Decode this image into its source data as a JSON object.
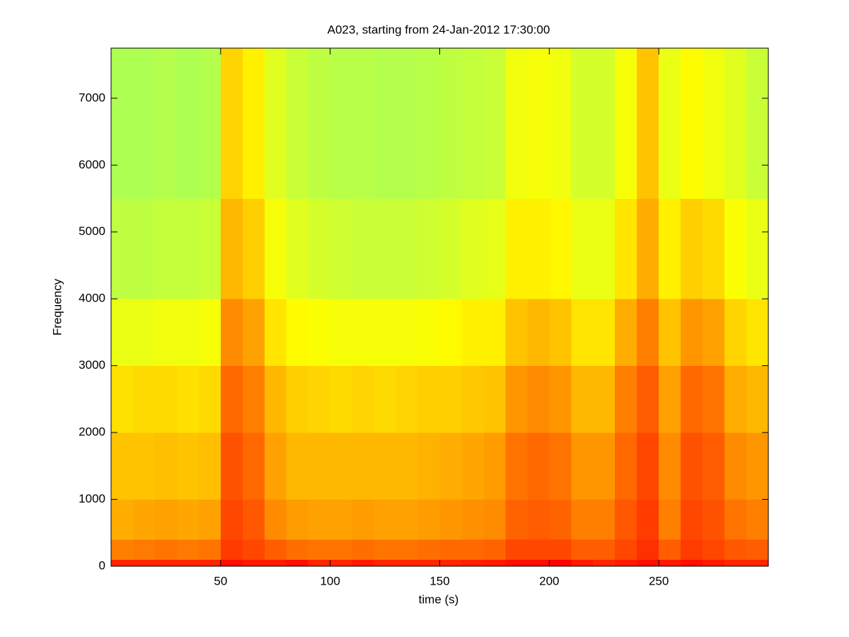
{
  "chart_data": {
    "type": "heatmap",
    "title": "A023, starting from 24-Jan-2012 17:30:00",
    "xlabel": "time (s)",
    "ylabel": "Frequency",
    "xlim": [
      0,
      300
    ],
    "ylim": [
      0,
      7750
    ],
    "xticks": [
      50,
      100,
      150,
      200,
      250
    ],
    "yticks": [
      0,
      1000,
      2000,
      3000,
      4000,
      5000,
      6000,
      7000
    ],
    "colormap": "jet",
    "clim": [
      -0.65,
      1.15
    ],
    "x_bins": [
      0,
      10,
      20,
      30,
      40,
      50,
      60,
      70,
      80,
      90,
      100,
      110,
      120,
      130,
      140,
      150,
      160,
      170,
      180,
      190,
      200,
      210,
      220,
      230,
      240,
      250,
      260,
      270,
      280,
      290,
      300
    ],
    "y_bins": [
      0,
      100,
      400,
      1000,
      2000,
      3000,
      4000,
      5500,
      7750
    ],
    "values": [
      [
        0.86,
        0.86,
        0.86,
        0.86,
        0.86,
        0.9,
        0.88,
        0.88,
        0.9,
        0.86,
        0.86,
        0.88,
        0.86,
        0.86,
        0.86,
        0.86,
        0.87,
        0.88,
        0.9,
        0.9,
        0.92,
        0.88,
        0.86,
        0.88,
        0.9,
        0.88,
        0.9,
        0.88,
        0.86,
        0.86
      ],
      [
        0.7,
        0.71,
        0.72,
        0.71,
        0.72,
        0.82,
        0.8,
        0.76,
        0.73,
        0.72,
        0.72,
        0.73,
        0.72,
        0.72,
        0.73,
        0.74,
        0.74,
        0.75,
        0.8,
        0.8,
        0.8,
        0.76,
        0.76,
        0.8,
        0.84,
        0.76,
        0.82,
        0.8,
        0.77,
        0.76
      ],
      [
        0.62,
        0.63,
        0.64,
        0.63,
        0.64,
        0.8,
        0.77,
        0.68,
        0.65,
        0.64,
        0.64,
        0.65,
        0.64,
        0.64,
        0.65,
        0.66,
        0.67,
        0.68,
        0.75,
        0.76,
        0.75,
        0.7,
        0.7,
        0.77,
        0.82,
        0.7,
        0.8,
        0.78,
        0.72,
        0.7
      ],
      [
        0.58,
        0.58,
        0.59,
        0.58,
        0.59,
        0.78,
        0.74,
        0.64,
        0.6,
        0.6,
        0.6,
        0.6,
        0.6,
        0.6,
        0.61,
        0.62,
        0.63,
        0.65,
        0.72,
        0.74,
        0.72,
        0.66,
        0.66,
        0.74,
        0.8,
        0.68,
        0.78,
        0.76,
        0.68,
        0.66
      ],
      [
        0.53,
        0.54,
        0.54,
        0.53,
        0.54,
        0.74,
        0.7,
        0.6,
        0.56,
        0.55,
        0.54,
        0.55,
        0.54,
        0.55,
        0.56,
        0.56,
        0.57,
        0.58,
        0.66,
        0.68,
        0.66,
        0.6,
        0.6,
        0.7,
        0.76,
        0.64,
        0.74,
        0.72,
        0.62,
        0.6
      ],
      [
        0.44,
        0.44,
        0.45,
        0.45,
        0.46,
        0.68,
        0.64,
        0.52,
        0.48,
        0.47,
        0.46,
        0.46,
        0.46,
        0.46,
        0.47,
        0.48,
        0.5,
        0.5,
        0.58,
        0.6,
        0.58,
        0.52,
        0.52,
        0.62,
        0.7,
        0.58,
        0.66,
        0.64,
        0.55,
        0.52
      ],
      [
        0.36,
        0.36,
        0.37,
        0.37,
        0.38,
        0.6,
        0.56,
        0.46,
        0.42,
        0.4,
        0.39,
        0.38,
        0.38,
        0.38,
        0.39,
        0.4,
        0.42,
        0.43,
        0.5,
        0.5,
        0.49,
        0.44,
        0.44,
        0.52,
        0.62,
        0.5,
        0.56,
        0.54,
        0.47,
        0.44
      ],
      [
        0.33,
        0.33,
        0.34,
        0.33,
        0.34,
        0.55,
        0.5,
        0.42,
        0.38,
        0.36,
        0.35,
        0.35,
        0.34,
        0.34,
        0.35,
        0.36,
        0.37,
        0.38,
        0.45,
        0.46,
        0.45,
        0.4,
        0.4,
        0.46,
        0.58,
        0.44,
        0.48,
        0.45,
        0.42,
        0.38
      ]
    ]
  }
}
